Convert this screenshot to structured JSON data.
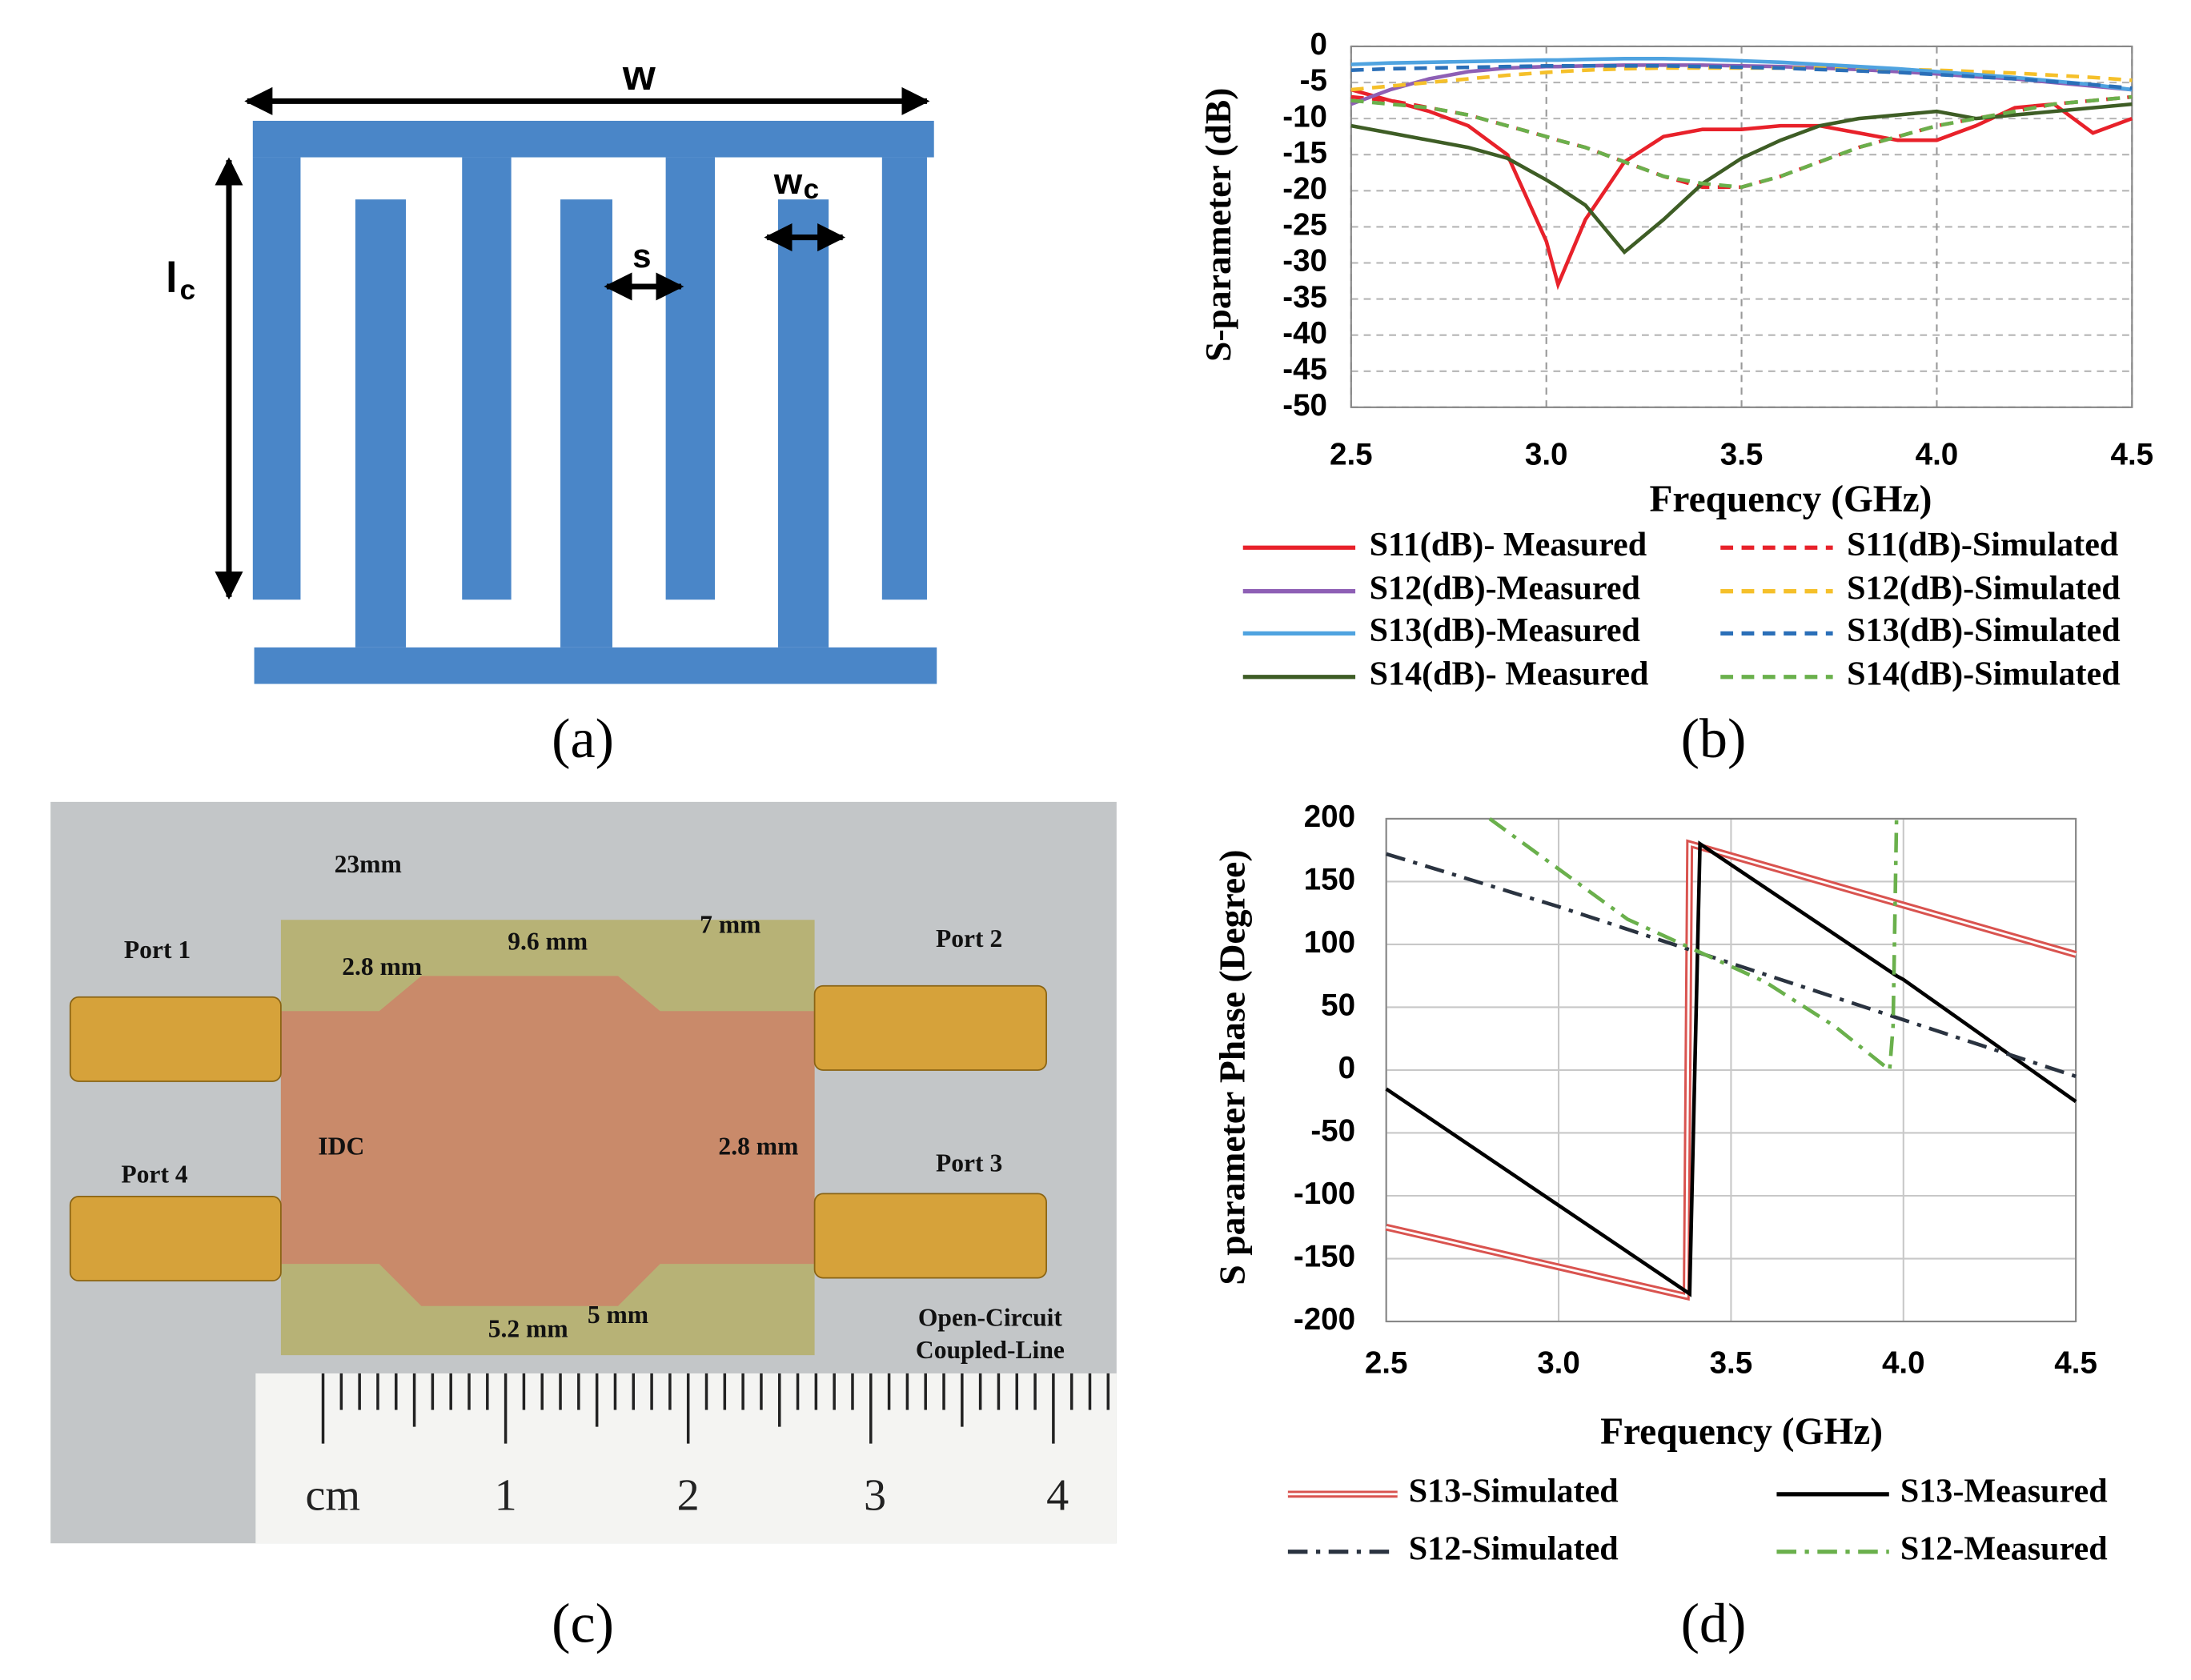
{
  "diagram": {
    "width_label": "w",
    "length_label": "l",
    "length_sub": "c",
    "gap_label": "s",
    "finger_label": "w",
    "finger_sub": "c",
    "caption": "(a)"
  },
  "photo": {
    "labels": [
      "23mm",
      "Port 1",
      "Port 2",
      "Port 3",
      "Port 4",
      "2.8 mm",
      "9.6 mm",
      "7 mm",
      "IDC",
      "2.8 mm",
      "5.2 mm",
      "5 mm",
      "Open-Circuit",
      "Coupled-Line"
    ],
    "ruler": [
      "cm",
      "1",
      "2",
      "3",
      "4"
    ],
    "caption": "(c)"
  },
  "chart_data": [
    {
      "type": "line",
      "caption": "(b)",
      "x_label": "Frequency (GHz)",
      "y_label": "S-parameter (dB)",
      "xlim": [
        2.5,
        4.5
      ],
      "ylim": [
        -50,
        0
      ],
      "grid": "dashed",
      "xticks": [
        2.5,
        {
          "value": 3,
          "label": "3.0"
        },
        3.5,
        {
          "value": 4,
          "label": "4.0"
        },
        4.5
      ],
      "yticks": [
        0,
        -5,
        -10,
        -15,
        -20,
        -25,
        -30,
        -35,
        -40,
        -45,
        -50
      ],
      "x": [
        2.5,
        2.6,
        2.7,
        2.8,
        2.9,
        3.0,
        3.03,
        3.1,
        3.2,
        3.3,
        3.4,
        3.5,
        3.6,
        3.7,
        3.8,
        3.9,
        4.0,
        4.1,
        4.2,
        4.3,
        4.4,
        4.5
      ],
      "series": [
        {
          "name": "S11(dB)- Measured",
          "color": "#e8212a",
          "style": "solid",
          "values": [
            -6,
            -7.5,
            -9,
            -11,
            -15,
            -27,
            -33,
            -24,
            -16,
            -12.5,
            -11.5,
            -11.5,
            -11,
            -11,
            -12,
            -13,
            -13,
            -11,
            -8.5,
            -8,
            -12,
            -10
          ]
        },
        {
          "name": "S11(dB)-Simulated",
          "color": "#e8212a",
          "style": "dashed",
          "values": [
            -7,
            -7.5,
            -8.5,
            -9.5,
            -11,
            -12.5,
            -13,
            -14,
            -16,
            -18,
            -19.5,
            -19.5,
            -18,
            -16,
            -14,
            -12.5,
            -11,
            -10,
            -9,
            -8,
            -7.5,
            -7
          ]
        },
        {
          "name": "S12(dB)-Measured",
          "color": "#8e5fb5",
          "style": "solid",
          "values": [
            -8,
            -6,
            -4.5,
            -3.5,
            -3,
            -2.8,
            -2.8,
            -2.7,
            -2.6,
            -2.6,
            -2.6,
            -2.7,
            -2.8,
            -3,
            -3.2,
            -3.5,
            -3.8,
            -4.2,
            -4.5,
            -5,
            -5.5,
            -6
          ]
        },
        {
          "name": "S12(dB)-Simulated",
          "color": "#f5c02a",
          "style": "dashed",
          "values": [
            -6,
            -5.5,
            -5,
            -4.5,
            -4,
            -3.6,
            -3.5,
            -3.3,
            -3.1,
            -3,
            -3,
            -3,
            -3,
            -3,
            -3.1,
            -3.2,
            -3.3,
            -3.5,
            -3.7,
            -4,
            -4.3,
            -4.7
          ]
        },
        {
          "name": "S13(dB)-Measured",
          "color": "#4fa3e0",
          "style": "solid",
          "values": [
            -2.5,
            -2.3,
            -2.2,
            -2.1,
            -2,
            -1.9,
            -1.9,
            -1.8,
            -1.7,
            -1.7,
            -1.8,
            -2,
            -2.2,
            -2.5,
            -2.8,
            -3.1,
            -3.5,
            -3.9,
            -4.3,
            -4.8,
            -5.3,
            -6
          ]
        },
        {
          "name": "S13(dB)-Simulated",
          "color": "#2a6fb8",
          "style": "dashed",
          "values": [
            -3.3,
            -3.1,
            -3,
            -2.9,
            -2.8,
            -2.7,
            -2.7,
            -2.7,
            -2.7,
            -2.7,
            -2.8,
            -2.9,
            -3,
            -3.2,
            -3.4,
            -3.6,
            -3.9,
            -4.2,
            -4.5,
            -4.9,
            -5.3,
            -5.8
          ]
        },
        {
          "name": "S14(dB)- Measured",
          "color": "#3e5d25",
          "style": "solid",
          "values": [
            -11,
            -12,
            -13,
            -14,
            -15.5,
            -18.5,
            -19.5,
            -22,
            -28.5,
            -24,
            -19,
            -15.5,
            -13,
            -11,
            -10,
            -9.5,
            -9,
            -10,
            -9.5,
            -9,
            -8.5,
            -8
          ]
        },
        {
          "name": "S14(dB)-Simulated",
          "color": "#6ab04c",
          "style": "dashed",
          "values": [
            -7.5,
            -8,
            -8.5,
            -9.5,
            -11,
            -12.5,
            -13,
            -14,
            -16,
            -18,
            -19,
            -19.5,
            -18,
            -16,
            -14,
            -12.5,
            -11,
            -10,
            -9,
            -8,
            -7.5,
            -7
          ]
        }
      ]
    },
    {
      "type": "line",
      "caption": "(d)",
      "x_label": "Frequency (GHz)",
      "y_label": "S parameter Phase (Degree)",
      "xlim": [
        2.5,
        4.5
      ],
      "ylim": [
        -200,
        200
      ],
      "grid": "solid",
      "xticks": [
        2.5,
        {
          "value": 3,
          "label": "3.0"
        },
        3.5,
        {
          "value": 4,
          "label": "4.0"
        },
        4.5
      ],
      "yticks": [
        200,
        150,
        100,
        50,
        0,
        -50,
        -100,
        -150,
        -200
      ],
      "series": [
        {
          "name": "S13-Simulated",
          "color": "#d9534f",
          "style": "double",
          "x": [
            2.5,
            3.37,
            3.38,
            4.5
          ],
          "values": [
            -125,
            -180,
            180,
            92
          ]
        },
        {
          "name": "S13-Measured",
          "color": "#000000",
          "style": "solid",
          "x": [
            2.5,
            3.38,
            3.41,
            3.98,
            4.0,
            4.5
          ],
          "values": [
            -15,
            -178,
            180,
            75,
            72,
            -25
          ]
        },
        {
          "name": "S12-Simulated",
          "color": "#2a3340",
          "style": "dashdot",
          "x": [
            2.5,
            3.0,
            3.5,
            4.0,
            4.5
          ],
          "values": [
            172,
            130,
            85,
            40,
            -5
          ]
        },
        {
          "name": "S12-Measured",
          "color": "#6ab04c",
          "style": "dashdot",
          "x": [
            2.8,
            3.0,
            3.2,
            3.4,
            3.6,
            3.8,
            3.96,
            3.97,
            3.98
          ],
          "values": [
            200,
            160,
            120,
            95,
            70,
            35,
            0,
            35,
            200
          ]
        }
      ]
    }
  ]
}
